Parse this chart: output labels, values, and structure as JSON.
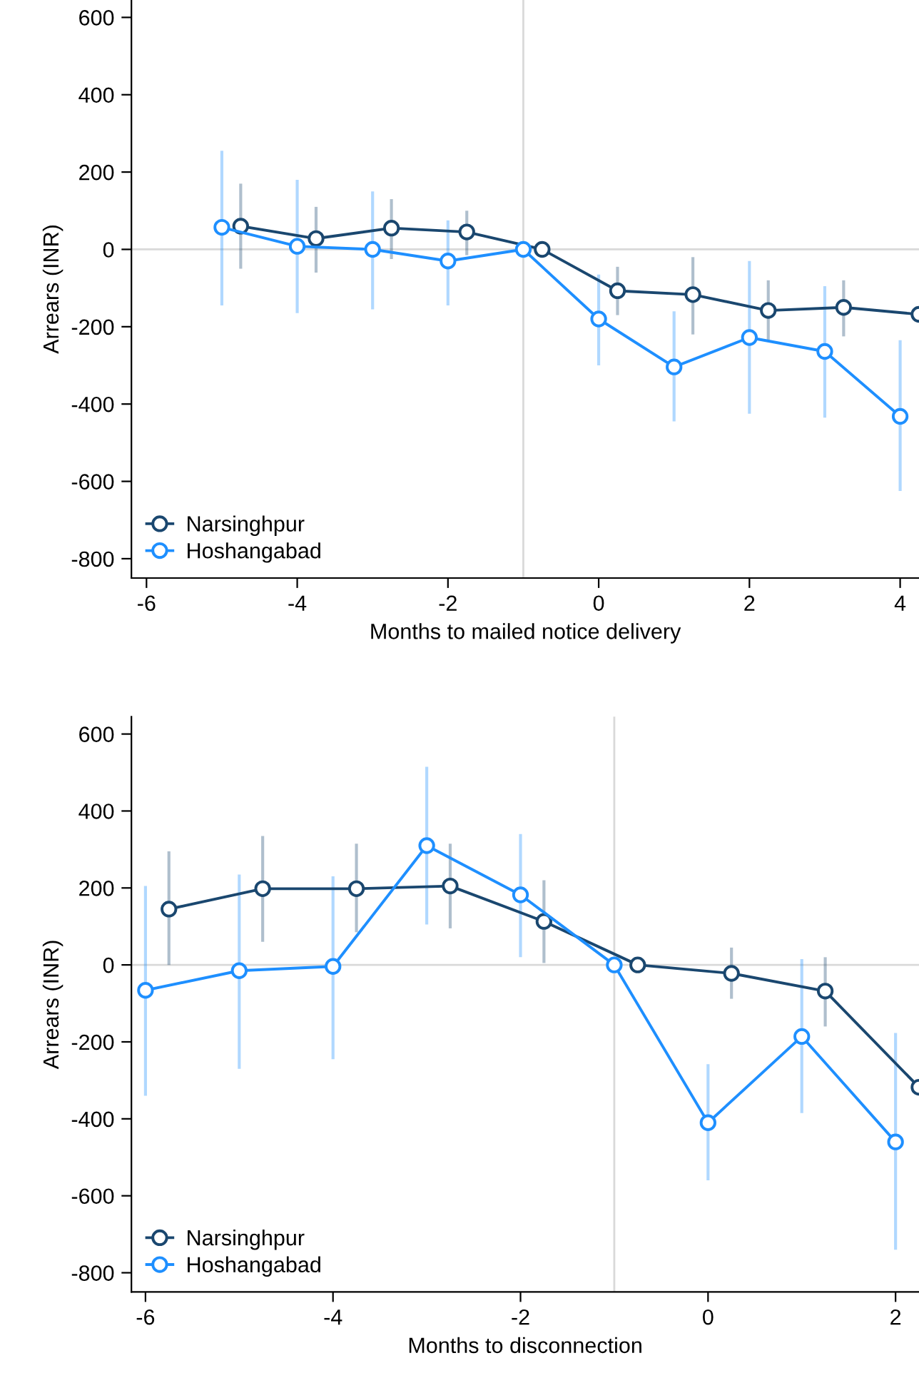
{
  "chart_data": [
    {
      "type": "line",
      "xlabel": "Months to mailed notice delivery",
      "ylabel": "Arrears (INR)",
      "xlim": [
        -6.2,
        4.25
      ],
      "ylim": [
        -850,
        645
      ],
      "xticks": [
        -6,
        -4,
        -2,
        0,
        2,
        4
      ],
      "yticks": [
        -800,
        -600,
        -400,
        -200,
        0,
        200,
        400,
        600
      ],
      "marker": "circle",
      "legend": "bottom left",
      "ref_lines": [
        {
          "axis": "y",
          "value": 0,
          "color": "#d9d9d9"
        },
        {
          "axis": "x",
          "value": -1,
          "color": "#d9d9d9"
        }
      ],
      "series": [
        {
          "name": "Narsinghpur",
          "color": "#1a476f",
          "x": [
            -4.75,
            -3.75,
            -2.75,
            -1.75,
            -0.75,
            0.25,
            1.25,
            2.25,
            3.25,
            4.25
          ],
          "values": [
            60,
            28,
            55,
            45,
            0,
            -107,
            -117,
            -158,
            -150,
            -168
          ],
          "errors": [
            [
              -50,
              170
            ],
            [
              -60,
              110
            ],
            [
              -25,
              130
            ],
            [
              -15,
              100
            ],
            null,
            [
              -45,
              -170
            ],
            [
              -20,
              -220
            ],
            [
              -80,
              -235
            ],
            [
              -80,
              -225
            ],
            null
          ]
        },
        {
          "name": "Hoshangabad",
          "color": "#1e8fff",
          "x": [
            -5,
            -4,
            -3,
            -2,
            -1,
            0,
            1,
            2,
            3,
            4
          ],
          "values": [
            57,
            8,
            0,
            -30,
            0,
            -180,
            -304,
            -228,
            -264,
            -432
          ],
          "errors": [
            [
              -145,
              255
            ],
            [
              -165,
              180
            ],
            [
              -155,
              150
            ],
            [
              -145,
              75
            ],
            null,
            [
              -65,
              -300
            ],
            [
              -160,
              -445
            ],
            [
              -30,
              -425
            ],
            [
              -95,
              -435
            ],
            [
              -235,
              -625
            ]
          ]
        }
      ]
    },
    {
      "type": "line",
      "xlabel": "Months to disconnection",
      "ylabel": "Arrears (INR)",
      "xlim": [
        -6.15,
        2.25
      ],
      "ylim": [
        -850,
        645
      ],
      "xticks": [
        -6,
        -4,
        -2,
        0,
        2
      ],
      "yticks": [
        -800,
        -600,
        -400,
        -200,
        0,
        200,
        400,
        600
      ],
      "marker": "circle",
      "legend": "bottom left",
      "ref_lines": [
        {
          "axis": "y",
          "value": 0,
          "color": "#d9d9d9"
        },
        {
          "axis": "x",
          "value": -1,
          "color": "#d9d9d9"
        }
      ],
      "series": [
        {
          "name": "Narsinghpur",
          "color": "#1a476f",
          "x": [
            -5.75,
            -4.75,
            -3.75,
            -2.75,
            -1.75,
            -0.75,
            0.25,
            1.25,
            2.25
          ],
          "values": [
            145,
            198,
            198,
            205,
            113,
            0,
            -22,
            -68,
            -318
          ],
          "errors": [
            [
              0,
              295
            ],
            [
              60,
              335
            ],
            [
              85,
              315
            ],
            [
              95,
              315
            ],
            [
              5,
              220
            ],
            null,
            [
              -88,
              45
            ],
            [
              -160,
              20
            ],
            null
          ]
        },
        {
          "name": "Hoshangabad",
          "color": "#1e8fff",
          "x": [
            -6,
            -5,
            -4,
            -3,
            -2,
            -1,
            0,
            1,
            2
          ],
          "values": [
            -66,
            -15,
            -4,
            310,
            182,
            0,
            -410,
            -186,
            -460
          ],
          "errors": [
            [
              -340,
              205
            ],
            [
              -270,
              235
            ],
            [
              -245,
              230
            ],
            [
              105,
              515
            ],
            [
              20,
              340
            ],
            null,
            [
              -560,
              -258
            ],
            [
              -385,
              15
            ],
            [
              -740,
              -177
            ]
          ]
        }
      ]
    }
  ]
}
